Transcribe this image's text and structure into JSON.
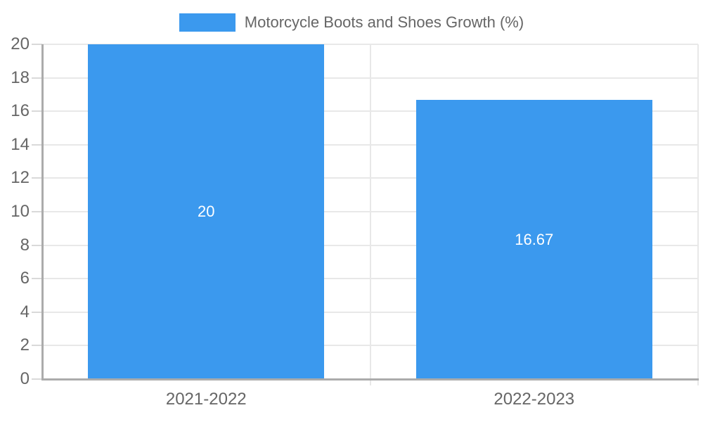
{
  "legend": {
    "label": "Motorcycle Boots and Shoes Growth (%)"
  },
  "colors": {
    "bar": "#3B99EE",
    "axis": "#ABABAB",
    "grid": "#E8E8E8",
    "tick": "#D9D9D9",
    "label_text": "#666666",
    "value_text": "#FFFFFF",
    "background": "#FFFFFF"
  },
  "chart_data": {
    "type": "bar",
    "title": "",
    "xlabel": "",
    "ylabel": "",
    "categories": [
      "2021-2022",
      "2022-2023"
    ],
    "series": [
      {
        "name": "Motorcycle Boots and Shoes Growth (%)",
        "values": [
          20,
          16.67
        ]
      }
    ],
    "value_labels": [
      "20",
      "16.67"
    ],
    "ylim": [
      0,
      20
    ],
    "yticks": [
      0,
      2,
      4,
      6,
      8,
      10,
      12,
      14,
      16,
      18,
      20
    ],
    "grid": true,
    "legend_position": "top-center"
  }
}
